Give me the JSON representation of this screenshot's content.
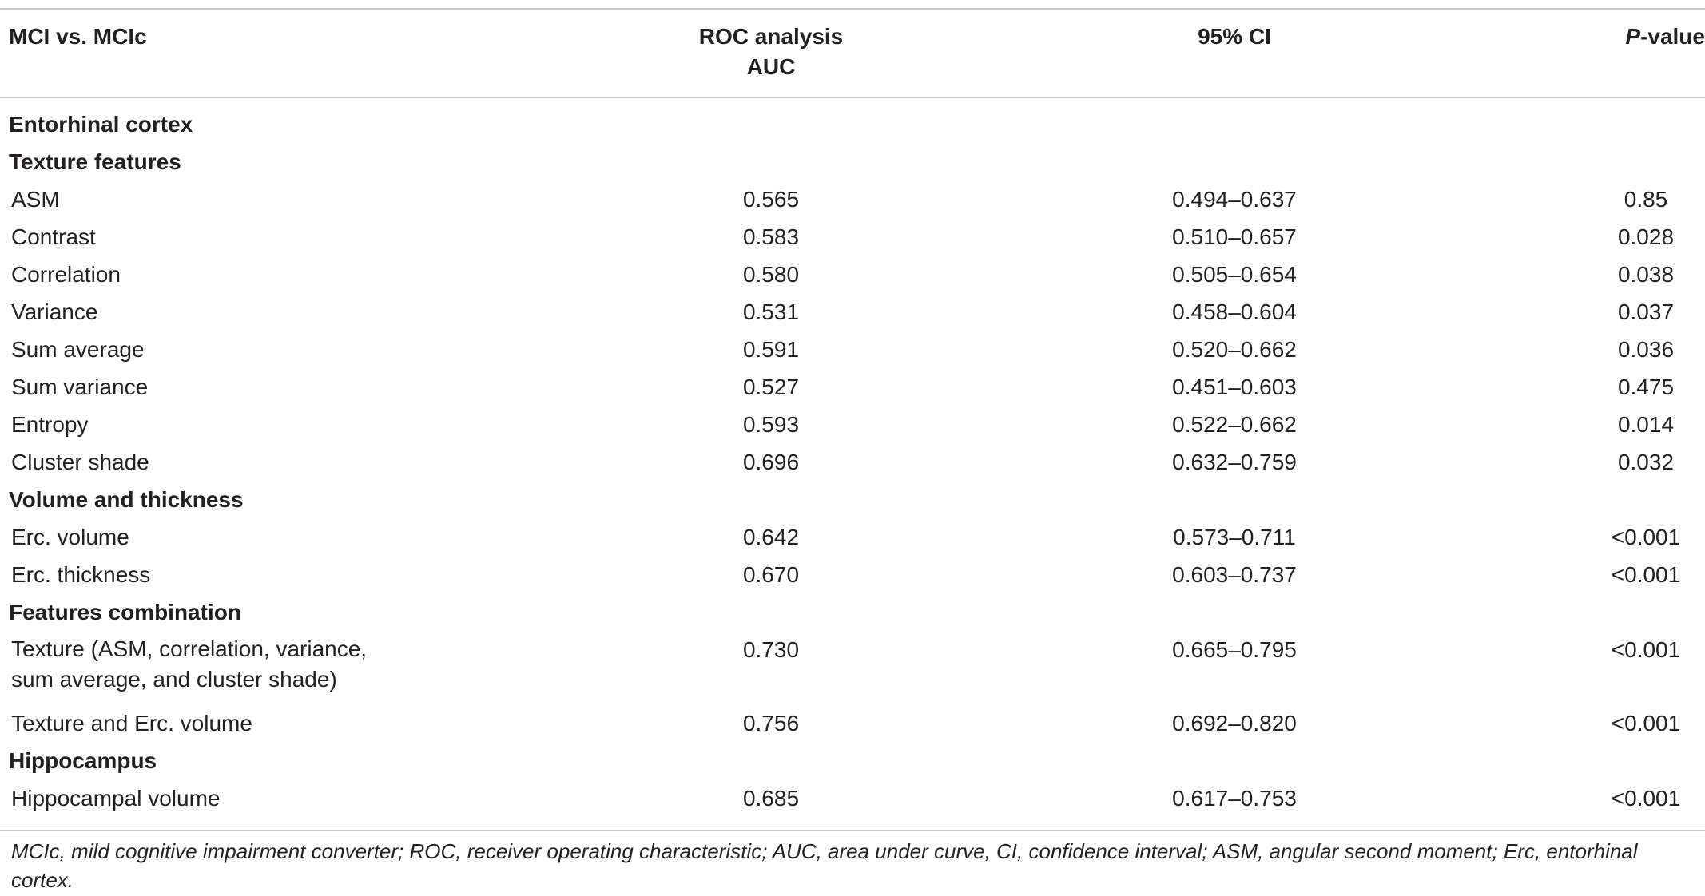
{
  "header": {
    "col1": "MCI vs. MCIc",
    "col2_line1": "ROC analysis",
    "col2_line2": "AUC",
    "col3": "95% CI",
    "col4_italic": "P",
    "col4_rest": "-value"
  },
  "sections": {
    "entorhinal": "Entorhinal cortex",
    "texture": "Texture features",
    "volume_thickness": "Volume and thickness",
    "combination": "Features combination",
    "hippocampus": "Hippocampus"
  },
  "rows": [
    {
      "label": "ASM",
      "auc": "0.565",
      "ci": "0.494–0.637",
      "p": "0.85"
    },
    {
      "label": "Contrast",
      "auc": "0.583",
      "ci": "0.510–0.657",
      "p": "0.028"
    },
    {
      "label": "Correlation",
      "auc": "0.580",
      "ci": "0.505–0.654",
      "p": "0.038"
    },
    {
      "label": "Variance",
      "auc": "0.531",
      "ci": "0.458–0.604",
      "p": "0.037"
    },
    {
      "label": "Sum average",
      "auc": "0.591",
      "ci": "0.520–0.662",
      "p": "0.036"
    },
    {
      "label": "Sum variance",
      "auc": "0.527",
      "ci": "0.451–0.603",
      "p": "0.475"
    },
    {
      "label": "Entropy",
      "auc": "0.593",
      "ci": "0.522–0.662",
      "p": "0.014"
    },
    {
      "label": "Cluster shade",
      "auc": "0.696",
      "ci": "0.632–0.759",
      "p": "0.032"
    },
    {
      "label": "Erc. volume",
      "auc": "0.642",
      "ci": "0.573–0.711",
      "p": "<0.001"
    },
    {
      "label": "Erc. thickness",
      "auc": "0.670",
      "ci": "0.603–0.737",
      "p": "<0.001"
    },
    {
      "label_line1": "Texture (ASM, correlation, variance,",
      "label_line2": "sum average, and cluster shade)",
      "auc": "0.730",
      "ci": "0.665–0.795",
      "p": "<0.001"
    },
    {
      "label": "Texture and Erc. volume",
      "auc": "0.756",
      "ci": "0.692–0.820",
      "p": "<0.001"
    },
    {
      "label": "Hippocampal volume",
      "auc": "0.685",
      "ci": "0.617–0.753",
      "p": "<0.001"
    }
  ],
  "footnote": "MCIc, mild cognitive impairment converter; ROC, receiver operating characteristic; AUC, area under curve, CI, confidence interval; ASM, angular second moment; Erc, entorhinal cortex."
}
